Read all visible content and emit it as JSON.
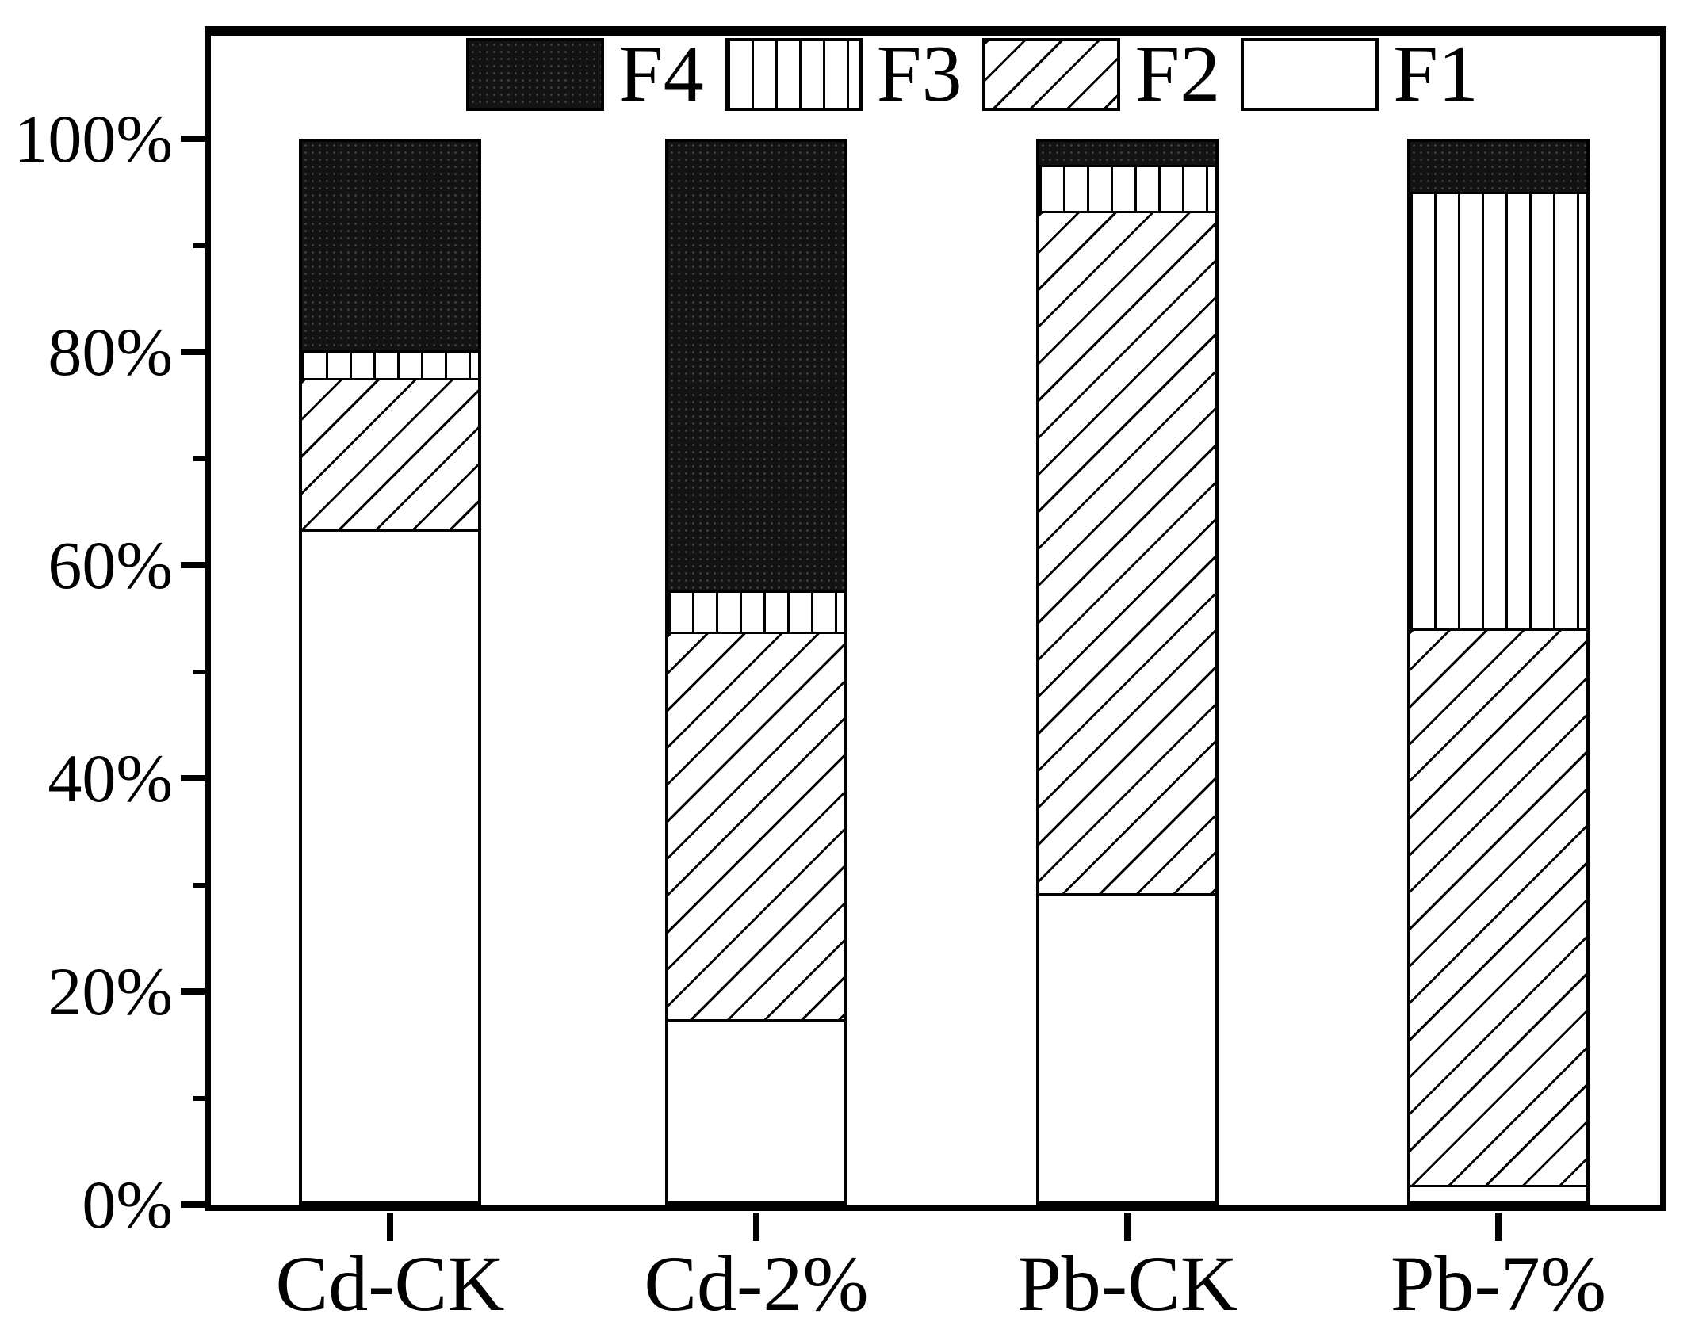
{
  "figure": {
    "background_color": "#ffffff",
    "ink_color": "#000000"
  },
  "chart_data": {
    "type": "bar",
    "stacked": true,
    "orientation": "vertical",
    "title": "",
    "xlabel": "",
    "ylabel": "",
    "categories": [
      "Cd-CK",
      "Cd-2%",
      "Pb-CK",
      "Pb-7%"
    ],
    "series": [
      {
        "name": "F1",
        "pattern": "plain-white",
        "values": [
          63.4,
          17.2,
          29.1,
          1.6
        ]
      },
      {
        "name": "F2",
        "pattern": "diagonal-hatch",
        "values": [
          14.3,
          36.6,
          64.4,
          52.5
        ]
      },
      {
        "name": "F3",
        "pattern": "vertical-lines",
        "values": [
          2.6,
          3.9,
          4.3,
          41.2
        ]
      },
      {
        "name": "F4",
        "pattern": "solid-black",
        "values": [
          19.7,
          42.3,
          2.2,
          4.7
        ]
      }
    ],
    "values_unit": "%",
    "ylim": [
      0,
      100
    ],
    "yticks": [
      {
        "value": 0,
        "label": "0%"
      },
      {
        "value": 20,
        "label": "20%"
      },
      {
        "value": 40,
        "label": "40%"
      },
      {
        "value": 60,
        "label": "60%"
      },
      {
        "value": 80,
        "label": "80%"
      },
      {
        "value": 100,
        "label": "100%"
      }
    ],
    "minor_yticks": [
      10,
      30,
      50,
      70,
      90
    ],
    "grid": false,
    "legend": {
      "position": "top-center-inside",
      "order": [
        "F4",
        "F3",
        "F2",
        "F1"
      ]
    }
  }
}
